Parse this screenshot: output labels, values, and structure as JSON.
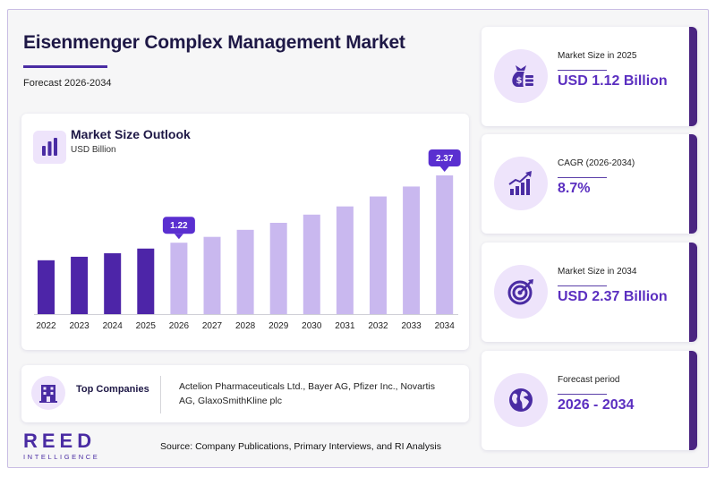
{
  "header": {
    "title": "Eisenmenger Complex Management Market",
    "subtitle": "Forecast 2026-2034"
  },
  "chart_data": {
    "type": "bar",
    "title": "Market Size Outlook",
    "subtitle": "USD Billion",
    "categories": [
      "2022",
      "2023",
      "2024",
      "2025",
      "2026",
      "2027",
      "2028",
      "2029",
      "2030",
      "2031",
      "2032",
      "2033",
      "2034"
    ],
    "values": [
      0.92,
      0.98,
      1.04,
      1.12,
      1.22,
      1.32,
      1.44,
      1.56,
      1.7,
      1.84,
      2.01,
      2.18,
      2.37
    ],
    "historical_color": "#4d25a8",
    "forecast_color": "#c9b8ef",
    "callouts": [
      {
        "index": 4,
        "label": "1.22"
      },
      {
        "index": 12,
        "label": "2.37"
      }
    ],
    "ylim": [
      0,
      2.37
    ],
    "grid": false
  },
  "companies": {
    "label": "Top Companies",
    "text": "Actelion Pharmaceuticals Ltd., Bayer AG, Pfizer Inc., Novartis AG, GlaxoSmithKline plc"
  },
  "stats": [
    {
      "label": "Market Size in 2025",
      "value": "USD 1.12 Billion",
      "icon": "money-bag-icon"
    },
    {
      "label": "CAGR (2026-2034)",
      "value": "8.7%",
      "icon": "growth-chart-icon"
    },
    {
      "label": "Market Size in 2034",
      "value": "USD 2.37 Billion",
      "icon": "target-icon"
    },
    {
      "label": "Forecast period",
      "value": "2026 - 2034",
      "icon": "globe-icon"
    }
  ],
  "brand": {
    "name": "REED",
    "tagline": "INTELLIGENCE"
  },
  "footer": {
    "source": "Source: Company Publications, Primary Interviews, and RI Analysis"
  },
  "colors": {
    "accent": "#4a2ca3",
    "value_text": "#5b2fc0",
    "tile_bg": "#eee4fb"
  }
}
